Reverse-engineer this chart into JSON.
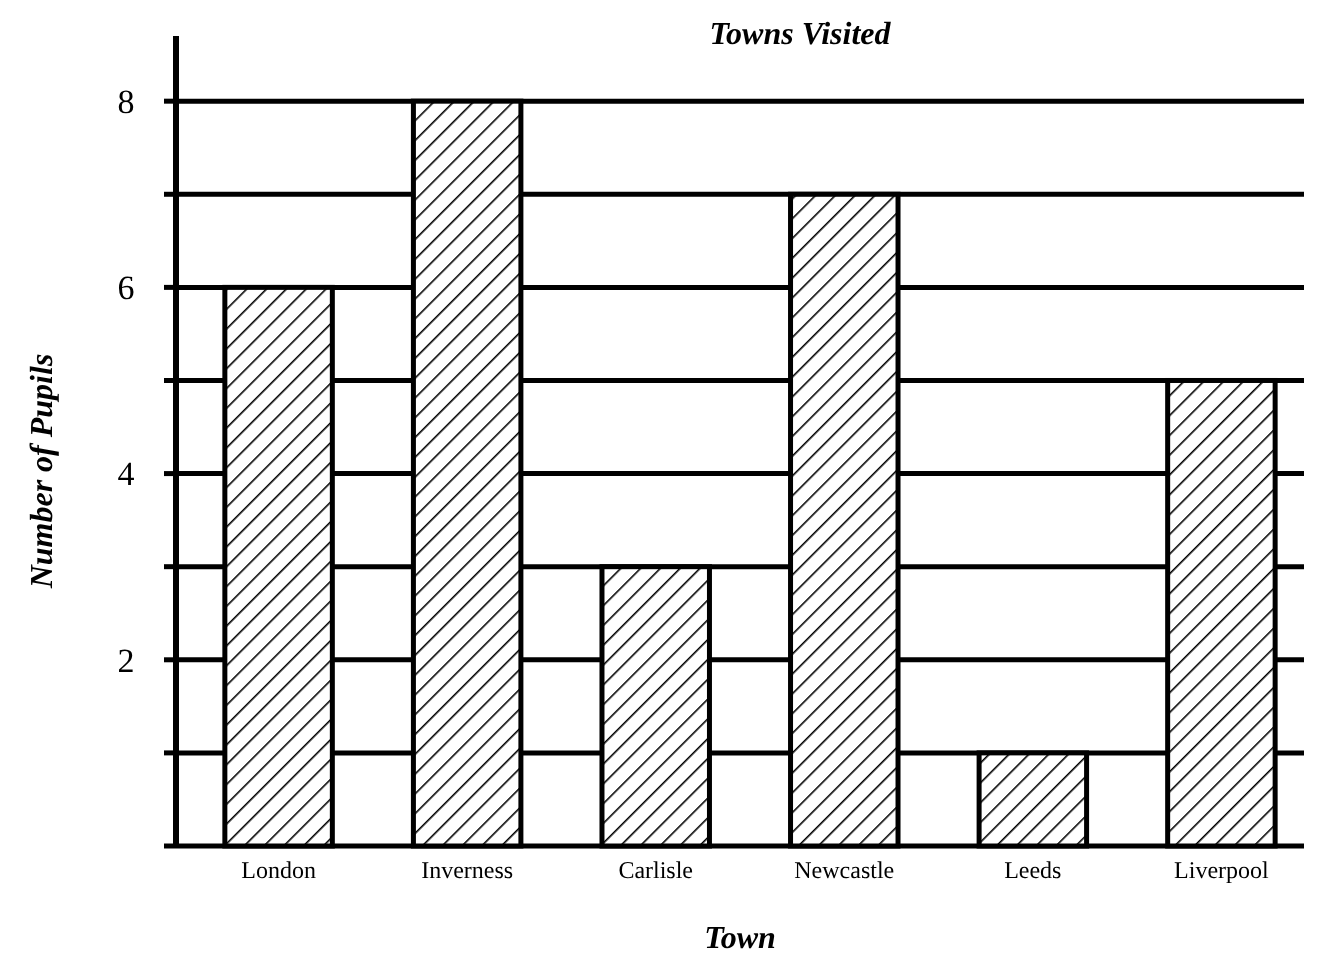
{
  "chart_data": {
    "type": "bar",
    "title": "Towns Visited",
    "xlabel": "Town",
    "ylabel": "Number of Pupils",
    "categories": [
      "London",
      "Inverness",
      "Carlisle",
      "Newcastle",
      "Leeds",
      "Liverpool"
    ],
    "values": [
      6,
      8,
      3,
      7,
      1,
      5
    ],
    "color": "#000000",
    "ylim": [
      0,
      8.7
    ],
    "yticks": [
      {
        "value": 0,
        "label": null
      },
      {
        "value": 1,
        "label": null
      },
      2,
      {
        "value": 3,
        "label": null
      },
      4,
      {
        "value": 5,
        "label": null
      },
      6,
      {
        "value": 7,
        "label": null
      },
      8
    ],
    "grid": "y"
  }
}
